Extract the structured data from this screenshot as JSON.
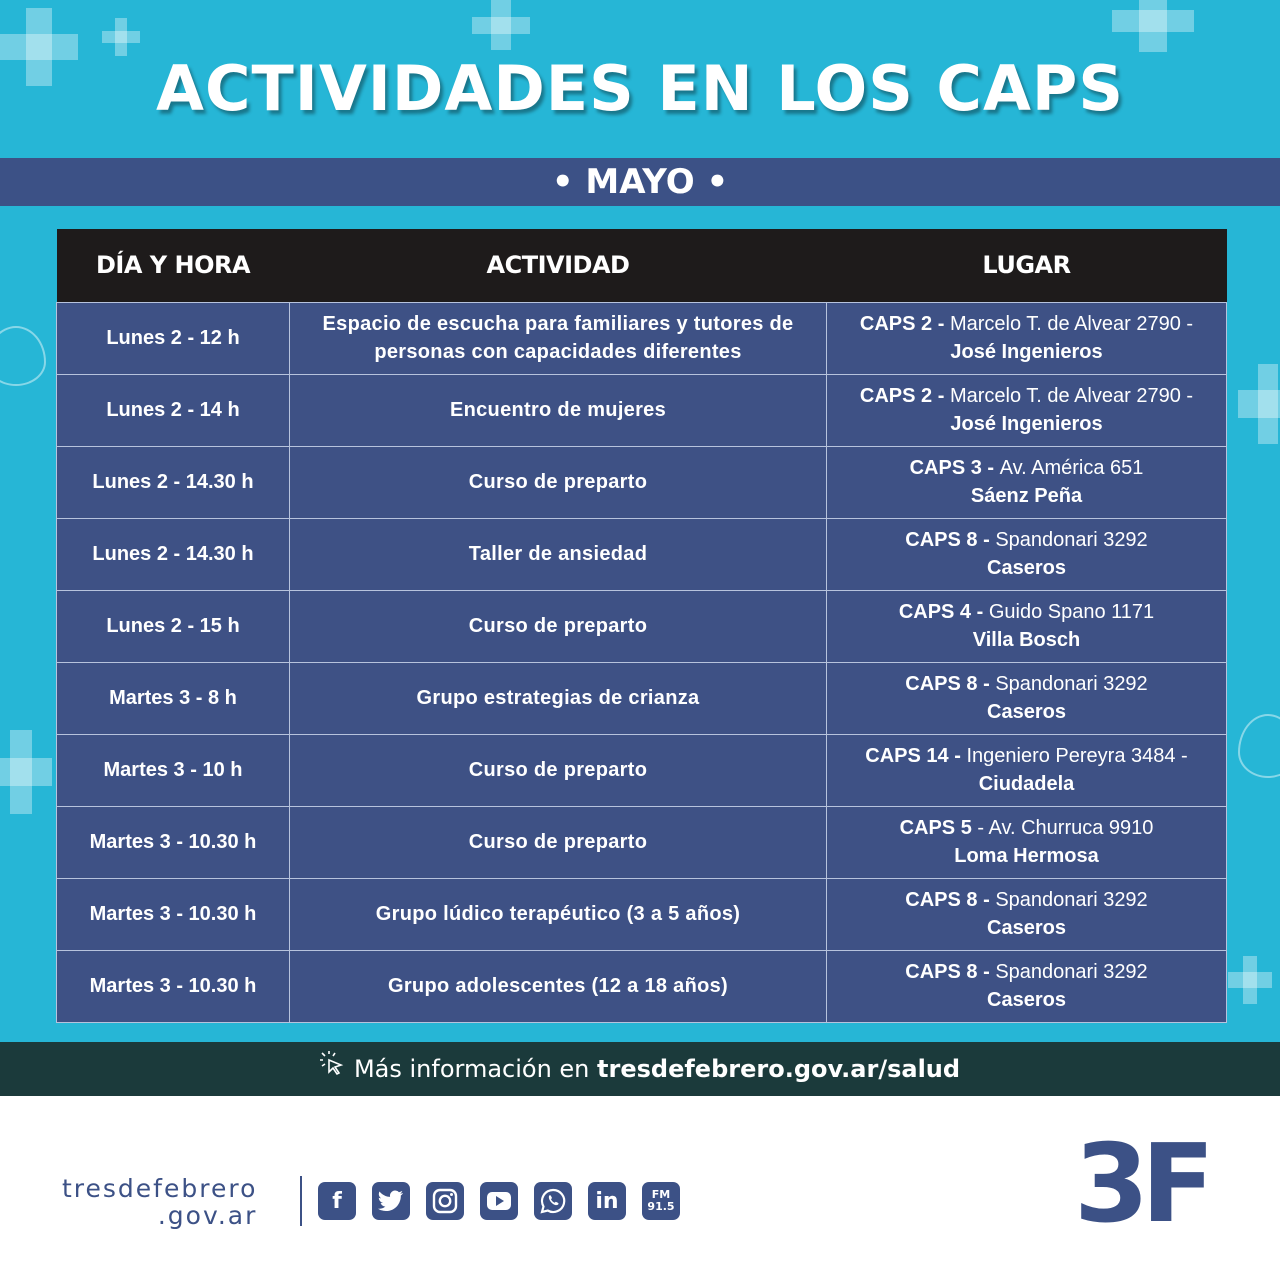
{
  "title": "ACTIVIDADES EN LOS CAPS",
  "month": "• MAYO •",
  "table": {
    "headers": [
      "DÍA Y HORA",
      "ACTIVIDAD",
      "LUGAR"
    ],
    "rows": [
      {
        "when": "Lunes 2 - 12 h",
        "activity": "Espacio de escucha para familiares y tutores de personas con capacidades diferentes",
        "place_name": "CAPS 2 - ",
        "place_address": "Marcelo T. de Alvear 2790 - ",
        "place_locality": "José Ingenieros"
      },
      {
        "when": "Lunes 2 - 14 h",
        "activity": "Encuentro de mujeres",
        "place_name": "CAPS 2 - ",
        "place_address": "Marcelo T. de Alvear 2790 - ",
        "place_locality": "José Ingenieros"
      },
      {
        "when": "Lunes 2 - 14.30 h",
        "activity": "Curso de preparto",
        "place_name": "CAPS 3 - ",
        "place_address": "Av. América 651",
        "place_locality": "Sáenz Peña"
      },
      {
        "when": "Lunes 2 - 14.30 h",
        "activity": "Taller de ansiedad",
        "place_name": "CAPS 8 - ",
        "place_address": "Spandonari 3292",
        "place_locality": "Caseros"
      },
      {
        "when": "Lunes 2 - 15 h",
        "activity": "Curso de preparto",
        "place_name": "CAPS 4 - ",
        "place_address": "Guido Spano 1171",
        "place_locality": "Villa Bosch"
      },
      {
        "when": "Martes 3 - 8 h",
        "activity": "Grupo estrategias de crianza",
        "place_name": "CAPS 8 - ",
        "place_address": "Spandonari 3292",
        "place_locality": "Caseros"
      },
      {
        "when": "Martes 3 - 10 h",
        "activity": "Curso de preparto",
        "place_name": "CAPS 14 - ",
        "place_address": "Ingeniero Pereyra 3484 - ",
        "place_locality": "Ciudadela"
      },
      {
        "when": "Martes 3 - 10.30 h",
        "activity": "Curso de preparto",
        "place_name": "CAPS 5",
        "place_address": " - Av. Churruca 9910",
        "place_locality": "Loma Hermosa"
      },
      {
        "when": "Martes 3 - 10.30 h",
        "activity": "Grupo lúdico terapéutico (3 a 5 años)",
        "place_name": "CAPS 8 - ",
        "place_address": "Spandonari 3292",
        "place_locality": "Caseros"
      },
      {
        "when": "Martes 3 - 10.30 h",
        "activity": "Grupo adolescentes (12 a 18 años)",
        "place_name": "CAPS 8 - ",
        "place_address": "Spandonari 3292",
        "place_locality": "Caseros"
      }
    ]
  },
  "info": {
    "icon": "cursor-click-icon",
    "prefix": "Más información en ",
    "url": "tresdefebrero.gov.ar/salud"
  },
  "footer": {
    "site_line1": "tresdefebrero",
    "site_line2": ".gov.ar",
    "socials": [
      {
        "icon": "facebook-icon",
        "glyph": "f"
      },
      {
        "icon": "twitter-icon",
        "glyph": "🐦"
      },
      {
        "icon": "instagram-icon",
        "glyph": "◎"
      },
      {
        "icon": "youtube-icon",
        "glyph": "▶"
      },
      {
        "icon": "whatsapp-icon",
        "glyph": "✆"
      },
      {
        "icon": "linkedin-icon",
        "glyph": "in"
      }
    ],
    "fm_label": "FM",
    "fm_freq": "91.5",
    "logo": "3F"
  },
  "colors": {
    "background": "#26b6d6",
    "band": "#3c5186",
    "header": "#1e1b1b",
    "cell": "#3e5185",
    "info_bar": "#1b3a3b"
  }
}
